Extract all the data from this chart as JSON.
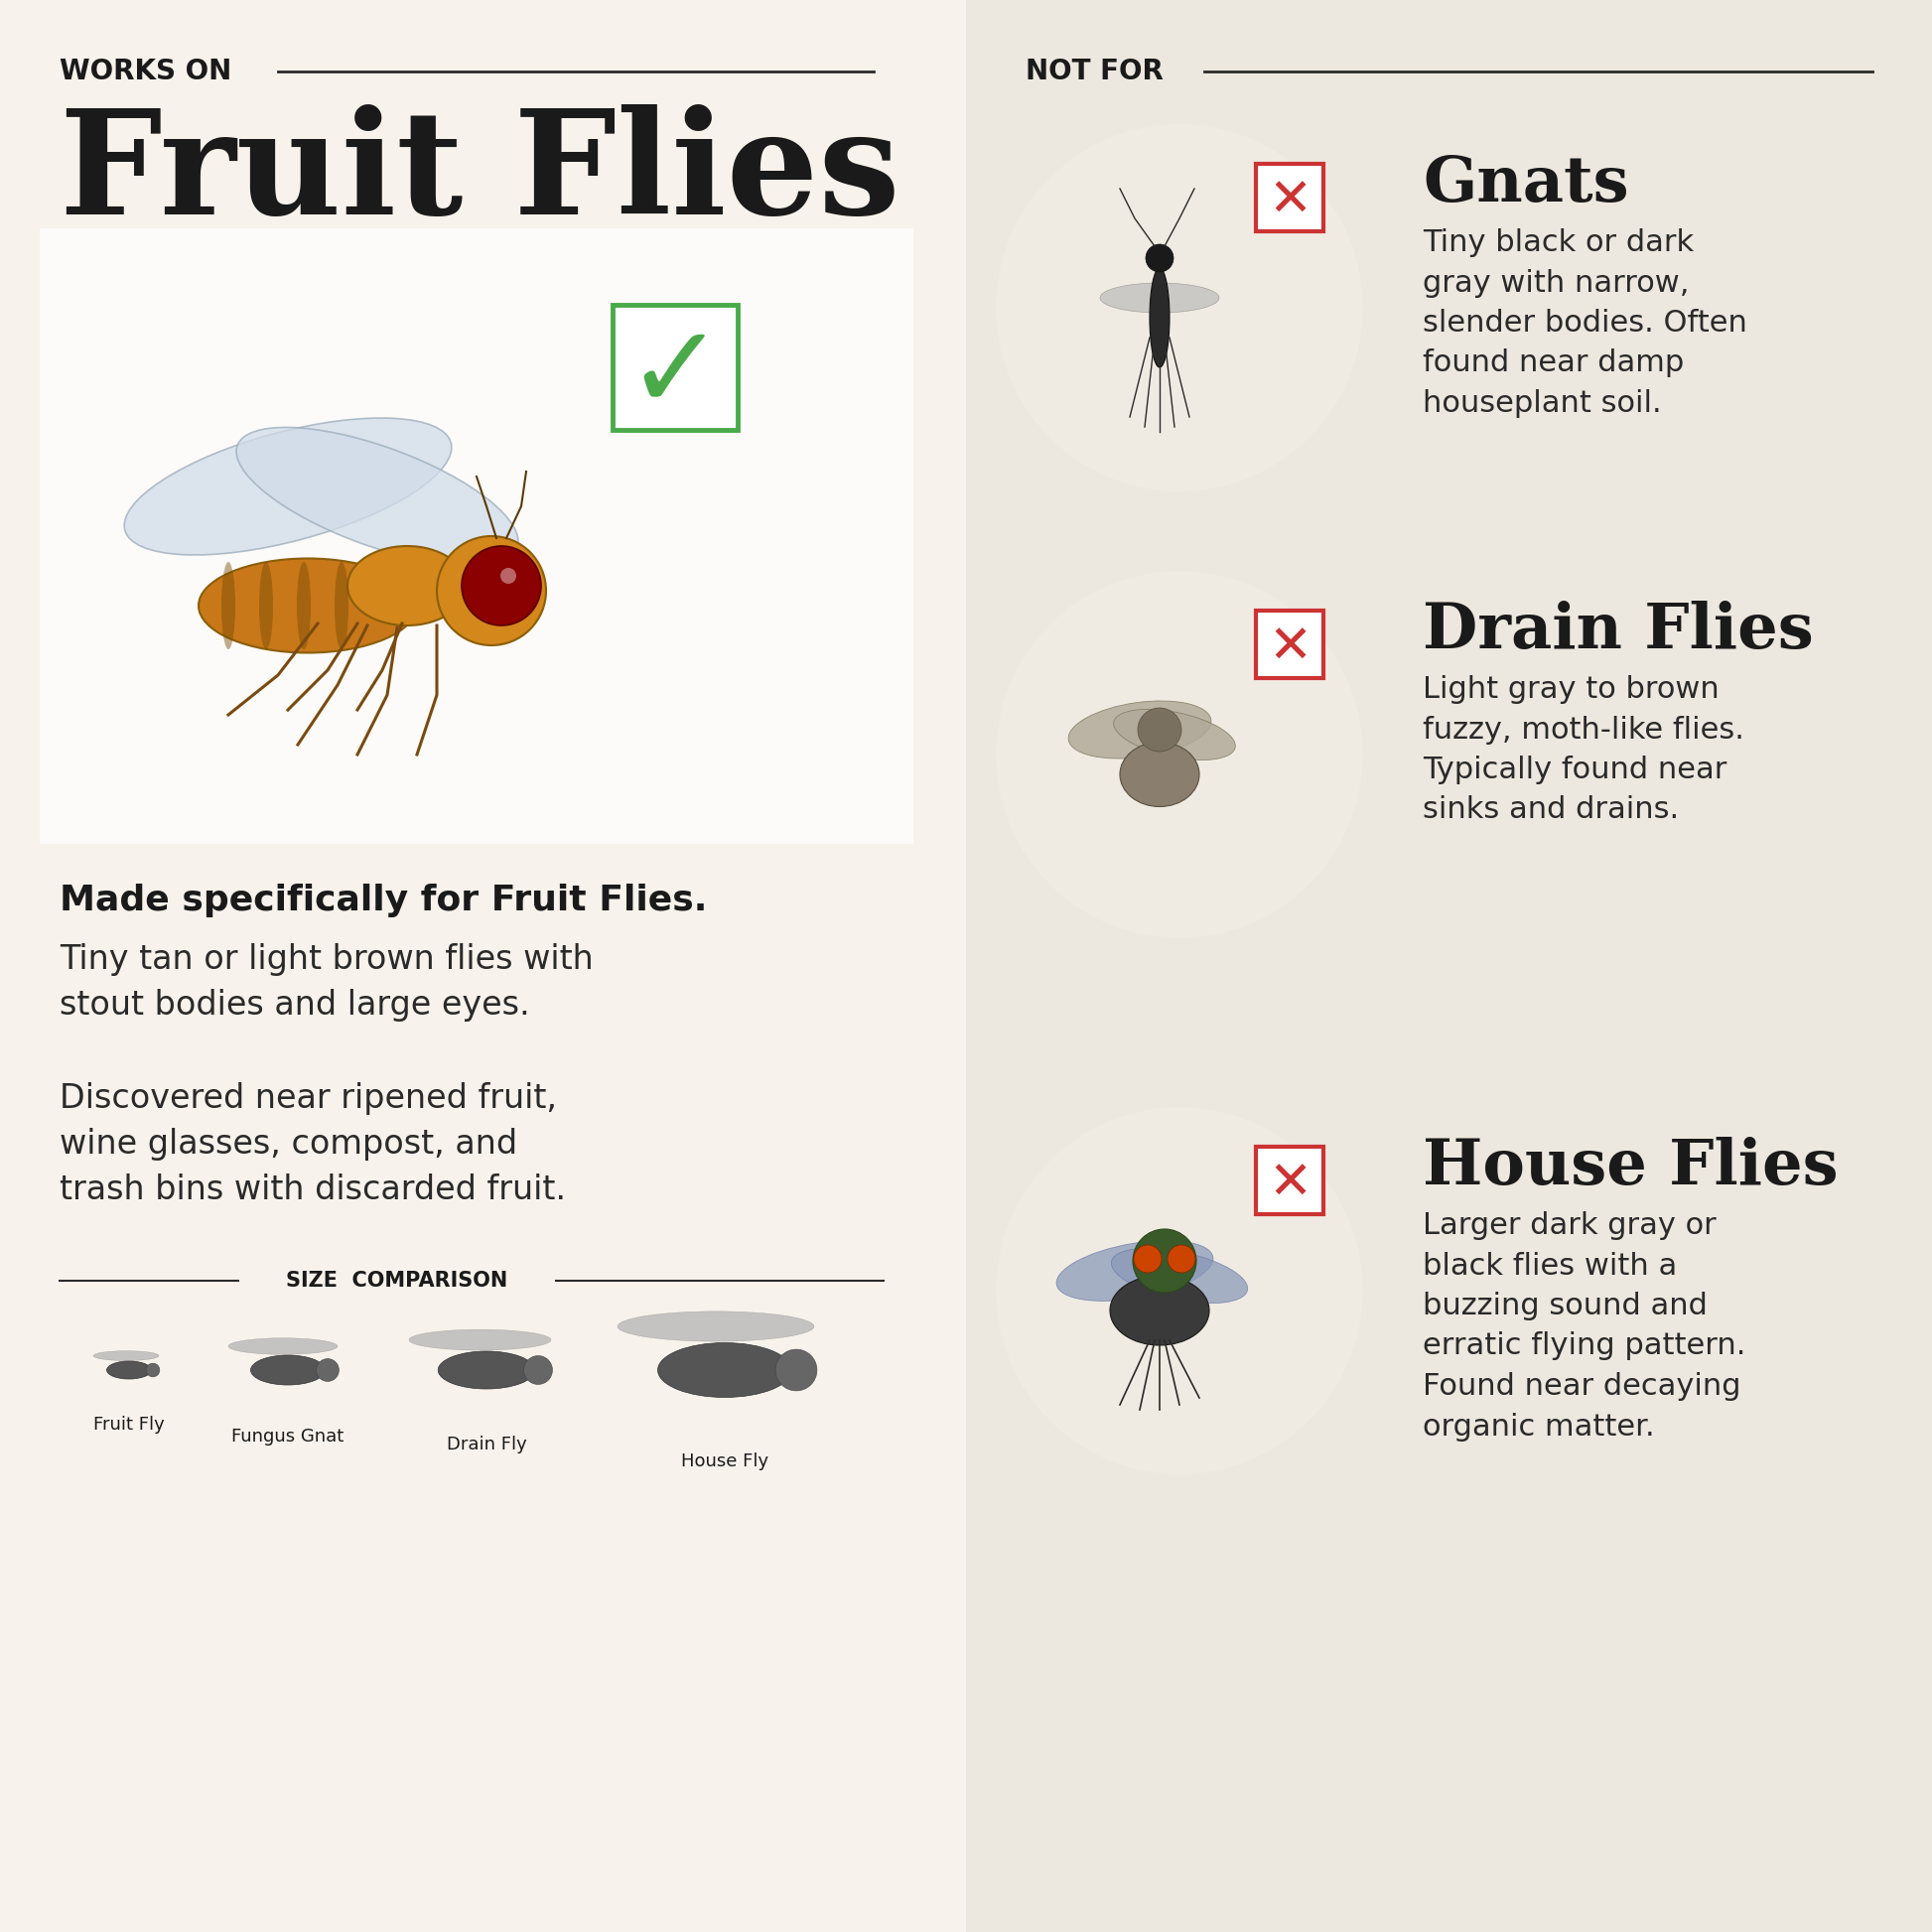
{
  "bg_left": "#f7f2ec",
  "bg_right": "#ede8df",
  "title_works_on": "WORKS ON",
  "title_not_for": "NOT FOR",
  "main_title": "Fruit Flies",
  "left_bold_text": "Made specifically for Fruit Flies.",
  "left_text1": "Tiny tan or light brown flies with\nstout bodies and large eyes.",
  "left_text2": "Discovered near ripened fruit,\nwine glasses, compost, and\ntrash bins with discarded fruit.",
  "size_comparison_title": "SIZE  COMPARISON",
  "size_labels": [
    "Fruit Fly",
    "Fungus Gnat",
    "Drain Fly",
    "House Fly"
  ],
  "insects": [
    {
      "name": "Gnats",
      "desc": "Tiny black or dark\ngray with narrow,\nslender bodies. Often\nfound near damp\nhouseplant soil."
    },
    {
      "name": "Drain Flies",
      "desc": "Light gray to brown\nfuzzy, moth-like flies.\nTypically found near\nsinks and drains."
    },
    {
      "name": "House Flies",
      "desc": "Larger dark gray or\nblack flies with a\nbuzzing sound and\nerratic flying pattern.\nFound near decaying\norganic matter."
    }
  ],
  "checkmark_color": "#4aaa4a",
  "x_color": "#cc3333",
  "text_dark": "#1a1a1a",
  "text_medium": "#2a2a2a",
  "circle_color": "#f0ebe2",
  "line_color": "#2a2a2a"
}
